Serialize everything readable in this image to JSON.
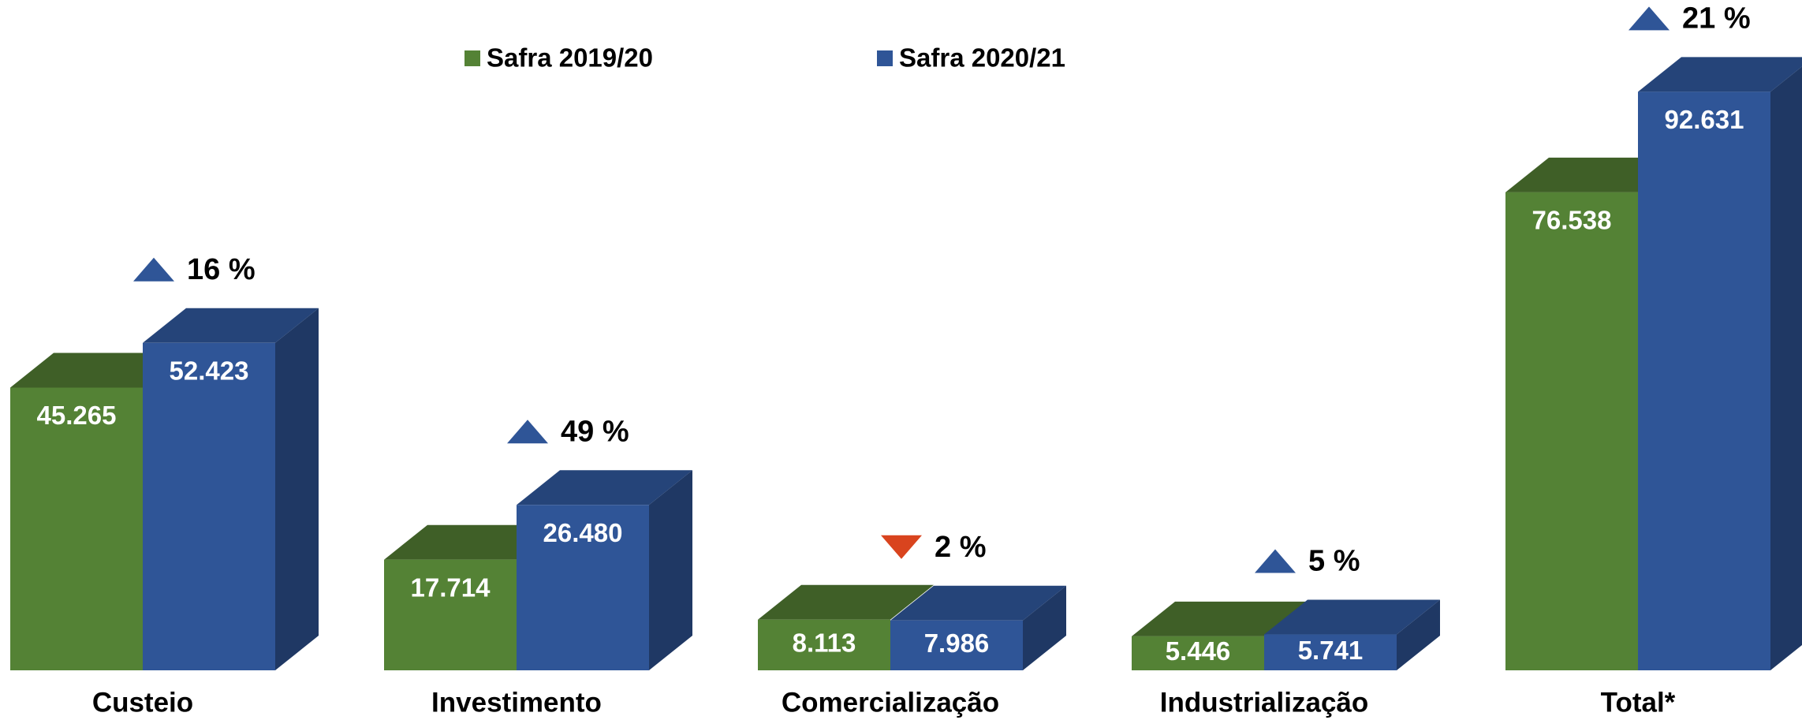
{
  "chart_data": {
    "type": "bar3d",
    "categories": [
      "Custeio",
      "Investimento",
      "Comercialização",
      "Industrialização",
      "Total*"
    ],
    "series": [
      {
        "name": "Safra 2019/20",
        "color": "#548235",
        "top_color": "#3f5f27",
        "values": [
          45265,
          17714,
          8113,
          5446,
          76538
        ],
        "value_labels": [
          "45.265",
          "17.714",
          "8.113",
          "5.446",
          "76.538"
        ]
      },
      {
        "name": "Safra 2020/21",
        "color": "#2f5597",
        "top_color": "#254479",
        "side_color": "#1f3864",
        "values": [
          52423,
          26480,
          7986,
          5741,
          92631
        ],
        "value_labels": [
          "52.423",
          "26.480",
          "7.986",
          "5.741",
          "92.631"
        ]
      }
    ],
    "changes": [
      {
        "label": "16 %",
        "direction": "up"
      },
      {
        "label": "49 %",
        "direction": "up"
      },
      {
        "label": "2 %",
        "direction": "down"
      },
      {
        "label": "5 %",
        "direction": "up"
      },
      {
        "label": "21 %",
        "direction": "up"
      }
    ],
    "direction_colors": {
      "up": "#2f5597",
      "down": "#d9441e"
    },
    "ylim": [
      0,
      100000
    ],
    "legend": "top"
  }
}
